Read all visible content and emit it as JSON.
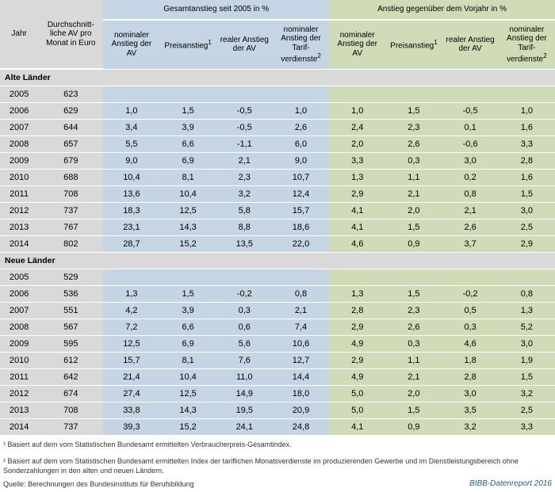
{
  "header": {
    "col_year": "Jahr",
    "col_av": "Durchschnitt-liche AV pro Monat in Euro",
    "group1": "Gesamtanstieg seit 2005 in %",
    "group2": "Anstieg gegenüber dem Vorjahr in %",
    "sub_nom_av": "nominaler Anstieg der AV",
    "sub_price": "Preisanstieg",
    "sub_price_sup": "1",
    "sub_real": "realer Anstieg der AV",
    "sub_tarif": "nominaler Anstieg der Tarif-verdienste",
    "sub_tarif_sup": "2"
  },
  "sections": [
    {
      "label": "Alte Länder",
      "rows": [
        {
          "year": "2005",
          "av": "623",
          "g": [
            "",
            "",
            "",
            ""
          ],
          "y": [
            "",
            "",
            "",
            ""
          ]
        },
        {
          "year": "2006",
          "av": "629",
          "g": [
            "1,0",
            "1,5",
            "-0,5",
            "1,0"
          ],
          "y": [
            "1,0",
            "1,5",
            "-0,5",
            "1,0"
          ]
        },
        {
          "year": "2007",
          "av": "644",
          "g": [
            "3,4",
            "3,9",
            "-0,5",
            "2,6"
          ],
          "y": [
            "2,4",
            "2,3",
            "0,1",
            "1,6"
          ]
        },
        {
          "year": "2008",
          "av": "657",
          "g": [
            "5,5",
            "6,6",
            "-1,1",
            "6,0"
          ],
          "y": [
            "2,0",
            "2,6",
            "-0,6",
            "3,3"
          ]
        },
        {
          "year": "2009",
          "av": "679",
          "g": [
            "9,0",
            "6,9",
            "2,1",
            "9,0"
          ],
          "y": [
            "3,3",
            "0,3",
            "3,0",
            "2,8"
          ]
        },
        {
          "year": "2010",
          "av": "688",
          "g": [
            "10,4",
            "8,1",
            "2,3",
            "10,7"
          ],
          "y": [
            "1,3",
            "1,1",
            "0,2",
            "1,6"
          ]
        },
        {
          "year": "2011",
          "av": "708",
          "g": [
            "13,6",
            "10,4",
            "3,2",
            "12,4"
          ],
          "y": [
            "2,9",
            "2,1",
            "0,8",
            "1,5"
          ]
        },
        {
          "year": "2012",
          "av": "737",
          "g": [
            "18,3",
            "12,5",
            "5,8",
            "15,7"
          ],
          "y": [
            "4,1",
            "2,0",
            "2,1",
            "3,0"
          ]
        },
        {
          "year": "2013",
          "av": "767",
          "g": [
            "23,1",
            "14,3",
            "8,8",
            "18,6"
          ],
          "y": [
            "4,1",
            "1,5",
            "2,6",
            "2,5"
          ]
        },
        {
          "year": "2014",
          "av": "802",
          "g": [
            "28,7",
            "15,2",
            "13,5",
            "22,0"
          ],
          "y": [
            "4,6",
            "0,9",
            "3,7",
            "2,9"
          ]
        }
      ]
    },
    {
      "label": "Neue Länder",
      "rows": [
        {
          "year": "2005",
          "av": "529",
          "g": [
            "",
            "",
            "",
            ""
          ],
          "y": [
            "",
            "",
            "",
            ""
          ]
        },
        {
          "year": "2006",
          "av": "536",
          "g": [
            "1,3",
            "1,5",
            "-0,2",
            "0,8"
          ],
          "y": [
            "1,3",
            "1,5",
            "-0,2",
            "0,8"
          ]
        },
        {
          "year": "2007",
          "av": "551",
          "g": [
            "4,2",
            "3,9",
            "0,3",
            "2,1"
          ],
          "y": [
            "2,8",
            "2,3",
            "0,5",
            "1,3"
          ]
        },
        {
          "year": "2008",
          "av": "567",
          "g": [
            "7,2",
            "6,6",
            "0,6",
            "7,4"
          ],
          "y": [
            "2,9",
            "2,6",
            "0,3",
            "5,2"
          ]
        },
        {
          "year": "2009",
          "av": "595",
          "g": [
            "12,5",
            "6,9",
            "5,6",
            "10,6"
          ],
          "y": [
            "4,9",
            "0,3",
            "4,6",
            "3,0"
          ]
        },
        {
          "year": "2010",
          "av": "612",
          "g": [
            "15,7",
            "8,1",
            "7,6",
            "12,7"
          ],
          "y": [
            "2,9",
            "1,1",
            "1,8",
            "1,9"
          ]
        },
        {
          "year": "2011",
          "av": "642",
          "g": [
            "21,4",
            "10,4",
            "11,0",
            "14,4"
          ],
          "y": [
            "4,9",
            "2,1",
            "2,8",
            "1,5"
          ]
        },
        {
          "year": "2012",
          "av": "674",
          "g": [
            "27,4",
            "12,5",
            "14,9",
            "18,0"
          ],
          "y": [
            "5,0",
            "2,0",
            "3,0",
            "3,2"
          ]
        },
        {
          "year": "2013",
          "av": "708",
          "g": [
            "33,8",
            "14,3",
            "19,5",
            "20,9"
          ],
          "y": [
            "5,0",
            "1,5",
            "3,5",
            "2,5"
          ]
        },
        {
          "year": "2014",
          "av": "737",
          "g": [
            "39,3",
            "15,2",
            "24,1",
            "24,8"
          ],
          "y": [
            "4,1",
            "0,9",
            "3,2",
            "3,3"
          ]
        }
      ]
    }
  ],
  "footnotes": {
    "f1": "¹ Basiert auf dem vom Statistischen Bundesamt ermittelten Verbraucherpreis-Gesamtindex.",
    "f2": "² Basiert auf dem vom Statistischen Bundesamt ermittelten Index der tariflichen Monatsverdienste im produzierenden Gewerbe und im Dienstleistungsbereich ohne Sonderzahlungen in den alten und neuen Ländern.",
    "source": "Quelle: Berechnungen des Bundesinstituts für Berufsbildung",
    "report": "BIBB-Datenreport 2016"
  },
  "colors": {
    "grey": "#d9d9d9",
    "blue": "#c5d5e3",
    "green": "#d0dcb8",
    "report_text": "#2a5c8a"
  },
  "fonts": {
    "body_pt": 11,
    "header_pt": 10,
    "footnote_pt": 9
  }
}
